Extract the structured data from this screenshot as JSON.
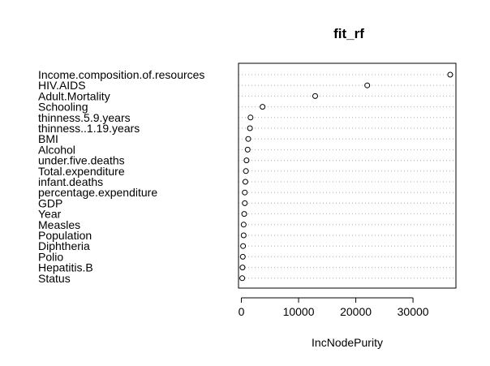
{
  "chart_data": {
    "type": "scatter",
    "title": "fit_rf",
    "xlabel": "IncNodePurity",
    "ylabel": "",
    "xlim": [
      -500,
      37500
    ],
    "xticks": [
      0,
      10000,
      20000,
      30000
    ],
    "xtick_labels": [
      "0",
      "10000",
      "20000",
      "30000"
    ],
    "grid": "dotted horizontal lines",
    "categories": [
      "Income.composition.of.resources",
      "HIV.AIDS",
      "Adult.Mortality",
      "Schooling",
      "thinness.5.9.years",
      "thinness..1.19.years",
      "BMI",
      "Alcohol",
      "under.five.deaths",
      "Total.expenditure",
      "infant.deaths",
      "percentage.expenditure",
      "GDP",
      "Year",
      "Measles",
      "Population",
      "Diphtheria",
      "Polio",
      "Hepatitis.B",
      "Status"
    ],
    "values": [
      36500,
      22000,
      12900,
      3700,
      1600,
      1500,
      1200,
      1100,
      900,
      800,
      700,
      600,
      600,
      500,
      400,
      400,
      300,
      250,
      200,
      150
    ]
  }
}
